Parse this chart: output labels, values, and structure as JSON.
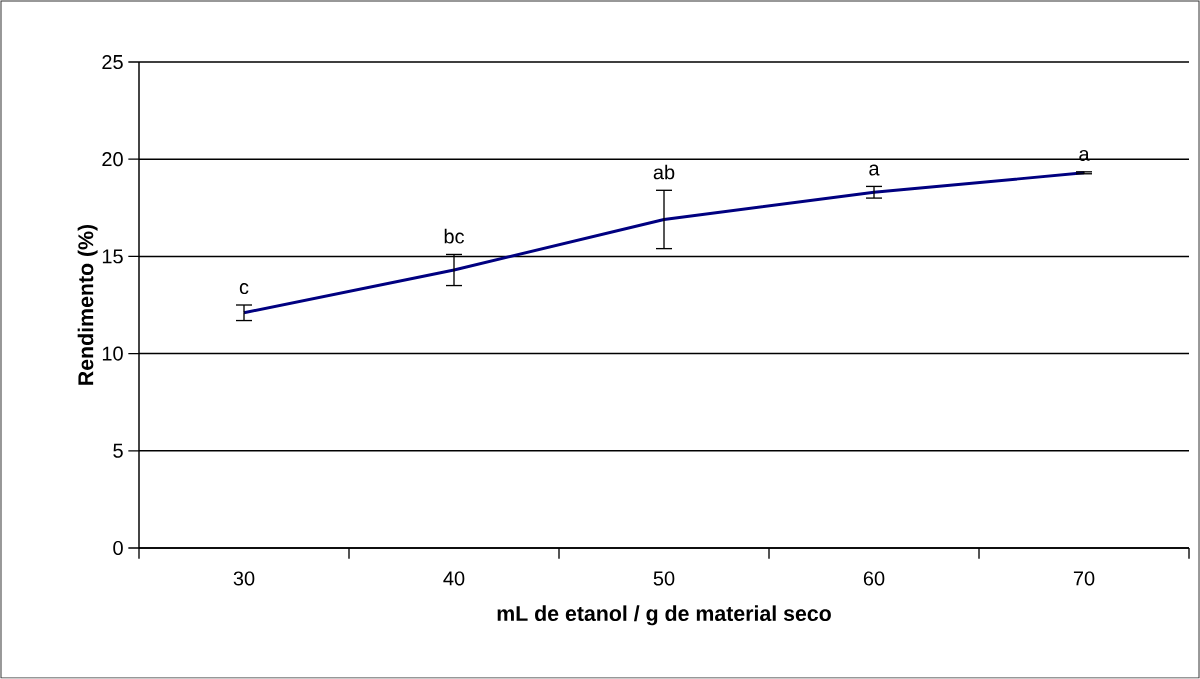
{
  "chart_data": {
    "type": "line",
    "xlabel": "mL de etanol / g de material seco",
    "ylabel": "Rendimento (%)",
    "categories": [
      "30",
      "40",
      "50",
      "60",
      "70"
    ],
    "series": [
      {
        "color": "#000080",
        "values": [
          12.1,
          14.3,
          16.9,
          18.3,
          19.3
        ],
        "errors": [
          0.4,
          0.8,
          1.5,
          0.3,
          0.05
        ]
      }
    ],
    "ylim": [
      0,
      25
    ],
    "yticks": [
      0,
      5,
      10,
      15,
      20,
      25
    ],
    "grid": "y",
    "marker": "none",
    "line_style": "solid",
    "annotations": [
      "c",
      "bc",
      "ab",
      "a",
      "a"
    ]
  }
}
